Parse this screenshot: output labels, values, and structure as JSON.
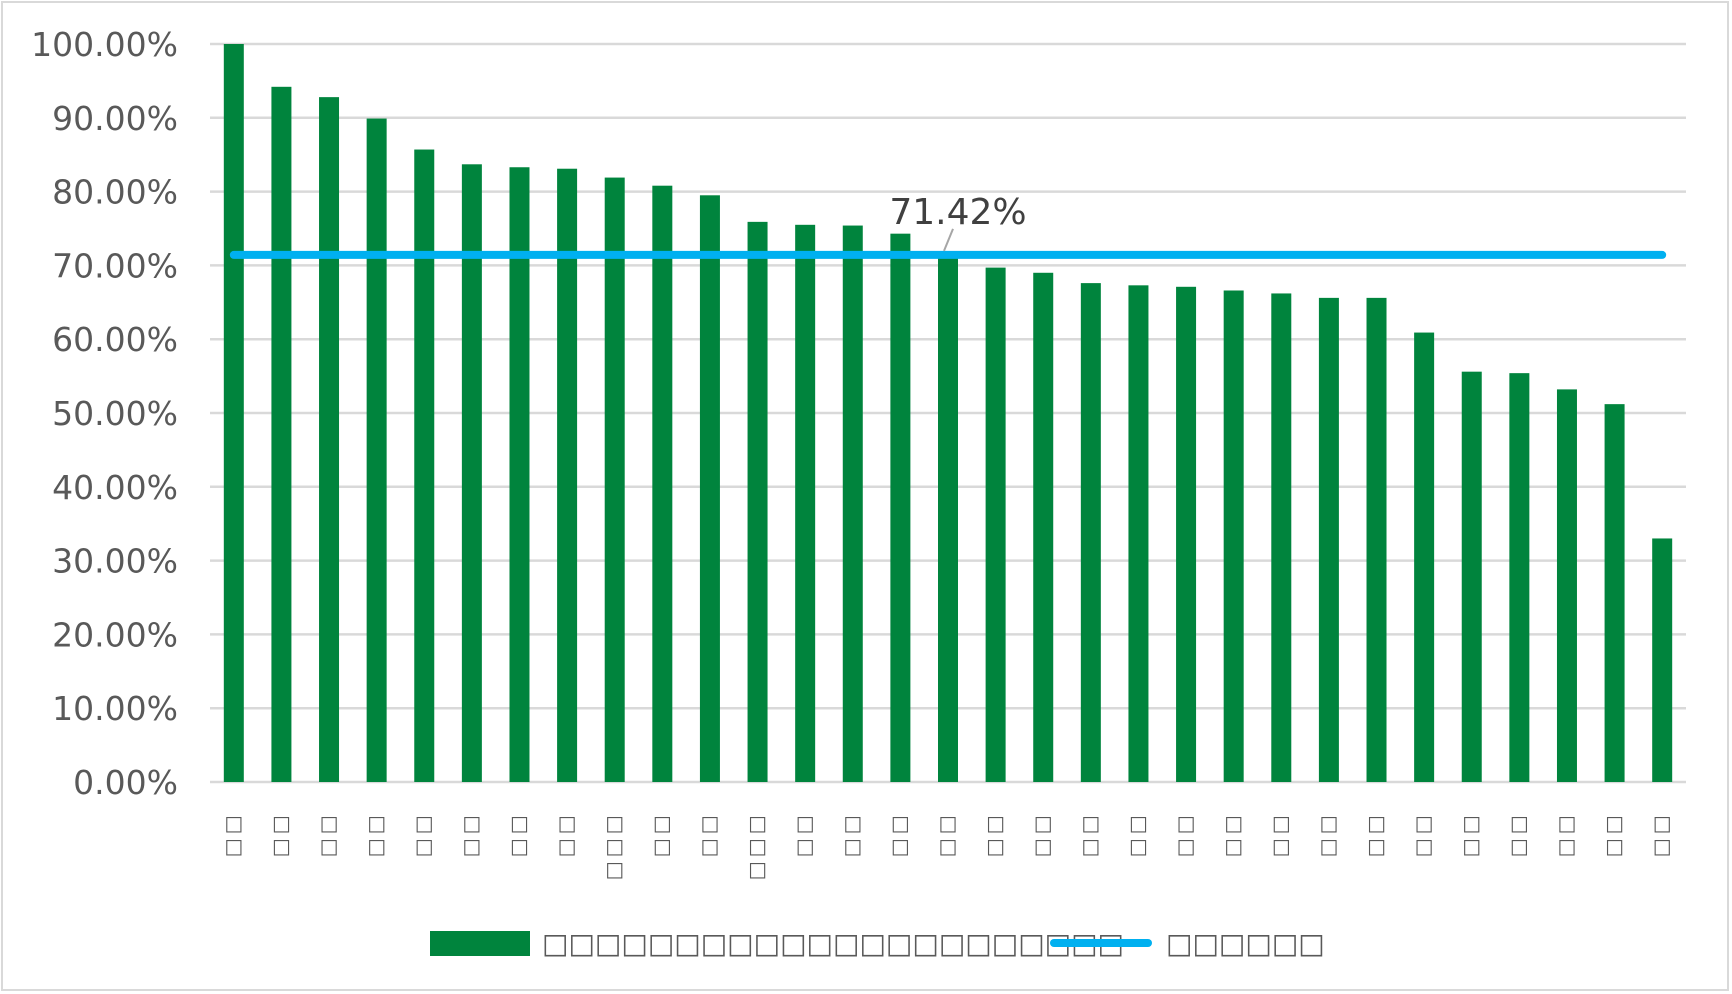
{
  "chart_data": {
    "type": "bar",
    "title": "",
    "xlabel": "",
    "ylabel": "",
    "ylim": [
      0,
      1
    ],
    "ytick_values": [
      0,
      0.1,
      0.2,
      0.3,
      0.4,
      0.5,
      0.6,
      0.7,
      0.8,
      0.9,
      1.0
    ],
    "ytick_labels": [
      "0.00%",
      "10.00%",
      "20.00%",
      "30.00%",
      "40.00%",
      "50.00%",
      "60.00%",
      "70.00%",
      "80.00%",
      "90.00%",
      "100.00%"
    ],
    "categories": [
      "□□",
      "□□",
      "□□",
      "□□",
      "□□",
      "□□",
      "□□",
      "□□",
      "□□□",
      "□□",
      "□□",
      "□□□",
      "□□",
      "□□",
      "□□",
      "□□",
      "□□",
      "□□",
      "□□",
      "□□",
      "□□",
      "□□",
      "□□",
      "□□",
      "□□",
      "□□",
      "□□",
      "□□",
      "□□",
      "□□",
      "□□"
    ],
    "series": [
      {
        "name": "□□□□□□□□□□□□□□□□□□□□□□",
        "type": "bar",
        "color": "#00843d",
        "values": [
          1.0,
          0.942,
          0.928,
          0.899,
          0.857,
          0.837,
          0.833,
          0.831,
          0.819,
          0.808,
          0.795,
          0.759,
          0.755,
          0.754,
          0.743,
          0.713,
          0.697,
          0.69,
          0.676,
          0.673,
          0.671,
          0.666,
          0.662,
          0.656,
          0.656,
          0.609,
          0.556,
          0.554,
          0.532,
          0.512,
          0.33
        ]
      },
      {
        "name": "□□□□□□",
        "type": "line",
        "color": "#00b0f0",
        "values": [
          0.7142,
          0.7142,
          0.7142,
          0.7142,
          0.7142,
          0.7142,
          0.7142,
          0.7142,
          0.7142,
          0.7142,
          0.7142,
          0.7142,
          0.7142,
          0.7142,
          0.7142,
          0.7142,
          0.7142,
          0.7142,
          0.7142,
          0.7142,
          0.7142,
          0.7142,
          0.7142,
          0.7142,
          0.7142,
          0.7142,
          0.7142,
          0.7142,
          0.7142,
          0.7142,
          0.7142
        ]
      }
    ],
    "annotation": {
      "text": "71.42%",
      "series": 1,
      "category_index": 15
    },
    "grid": true,
    "legend_position": "bottom"
  }
}
